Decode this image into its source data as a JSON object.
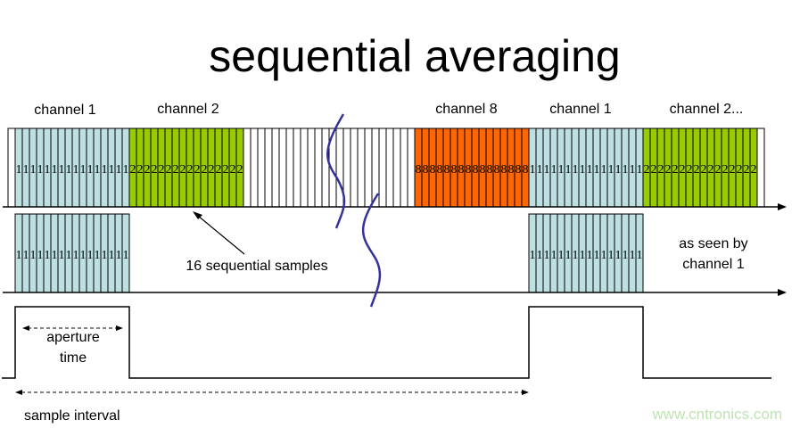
{
  "title": "sequential averaging",
  "channel_labels": {
    "ch1_a": "channel 1",
    "ch2_a": "channel 2",
    "ch8": "channel 8",
    "ch1_b": "channel 1",
    "ch2_b": "channel 2..."
  },
  "annotations": {
    "sequential_samples": "16 sequential samples",
    "seen_by_line1": "as seen by",
    "seen_by_line2": "channel 1",
    "aperture_line1": "aperture",
    "aperture_line2": "time",
    "sample_interval": "sample interval"
  },
  "samples_per_block": 16,
  "top_strip_blocks": [
    {
      "digit": "",
      "cells": 1,
      "color": "#ffffff"
    },
    {
      "digit": "1",
      "cells": 16,
      "color": "#bfe0e3"
    },
    {
      "digit": "2",
      "cells": 16,
      "color": "#99cc00"
    },
    {
      "digit": "",
      "cells": 24,
      "color": "#ffffff"
    },
    {
      "digit": "8",
      "cells": 16,
      "color": "#ff6600"
    },
    {
      "digit": "1",
      "cells": 16,
      "color": "#bfe0e3"
    },
    {
      "digit": "2",
      "cells": 16,
      "color": "#99cc00"
    },
    {
      "digit": "",
      "cells": 1,
      "color": "#ffffff"
    }
  ],
  "colors": {
    "break_mark": "#333399",
    "watermark": "#bfe3b4"
  },
  "watermark": "www.cntronics.com"
}
